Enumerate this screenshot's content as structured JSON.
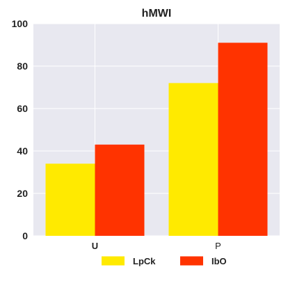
{
  "chart_data": {
    "type": "bar",
    "title": "hMWI",
    "xlabel": "",
    "ylabel": "",
    "categories": [
      "U",
      "P"
    ],
    "category_label_bold": [
      true,
      false
    ],
    "series": [
      {
        "name": "LpCk",
        "color": "#FFEA00",
        "values": [
          34,
          72
        ]
      },
      {
        "name": "IbO",
        "color": "#FF3300",
        "values": [
          43,
          91
        ]
      }
    ],
    "ylim": [
      0,
      100
    ],
    "yticks": [
      0,
      20,
      40,
      60,
      80,
      100
    ],
    "grid": true,
    "plot_background": "#E8E8F0",
    "legend_placement": "bottom-center"
  }
}
